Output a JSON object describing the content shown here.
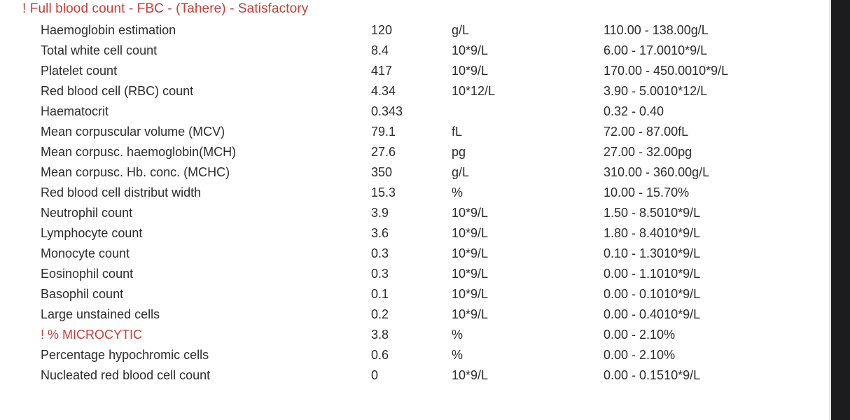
{
  "colors": {
    "alert_red": "#c4403a",
    "body_text": "#2d2d2d",
    "right_bar": "#1c1c1f",
    "right_bar_edge": "#e6e6e8"
  },
  "report": {
    "header": "! Full blood count - FBC - (Tahere) - Satisfactory",
    "rows": [
      {
        "name": "Haemoglobin estimation",
        "value": "120",
        "unit": "g/L",
        "range": "110.00 - 138.00g/L",
        "alert": false
      },
      {
        "name": "Total white cell count",
        "value": "8.4",
        "unit": "10*9/L",
        "range": "6.00 - 17.0010*9/L",
        "alert": false
      },
      {
        "name": "Platelet count",
        "value": "417",
        "unit": "10*9/L",
        "range": "170.00 - 450.0010*9/L",
        "alert": false
      },
      {
        "name": "Red blood cell (RBC) count",
        "value": "4.34",
        "unit": "10*12/L",
        "range": "3.90 - 5.0010*12/L",
        "alert": false
      },
      {
        "name": "Haematocrit",
        "value": "0.343",
        "unit": "",
        "range": "0.32 - 0.40",
        "alert": false
      },
      {
        "name": "Mean corpuscular volume (MCV)",
        "value": "79.1",
        "unit": "fL",
        "range": "72.00 - 87.00fL",
        "alert": false
      },
      {
        "name": "Mean corpusc. haemoglobin(MCH)",
        "value": "27.6",
        "unit": "pg",
        "range": "27.00 - 32.00pg",
        "alert": false
      },
      {
        "name": "Mean corpusc. Hb. conc. (MCHC)",
        "value": "350",
        "unit": "g/L",
        "range": "310.00 - 360.00g/L",
        "alert": false
      },
      {
        "name": "Red blood cell distribut width",
        "value": "15.3",
        "unit": "%",
        "range": "10.00 - 15.70%",
        "alert": false
      },
      {
        "name": "Neutrophil count",
        "value": "3.9",
        "unit": "10*9/L",
        "range": "1.50 - 8.5010*9/L",
        "alert": false
      },
      {
        "name": "Lymphocyte count",
        "value": "3.6",
        "unit": "10*9/L",
        "range": "1.80 - 8.4010*9/L",
        "alert": false
      },
      {
        "name": "Monocyte count",
        "value": "0.3",
        "unit": "10*9/L",
        "range": "0.10 - 1.3010*9/L",
        "alert": false
      },
      {
        "name": "Eosinophil count",
        "value": "0.3",
        "unit": "10*9/L",
        "range": "0.00 - 1.1010*9/L",
        "alert": false
      },
      {
        "name": "Basophil count",
        "value": "0.1",
        "unit": "10*9/L",
        "range": "0.00 - 0.1010*9/L",
        "alert": false
      },
      {
        "name": "Large unstained cells",
        "value": "0.2",
        "unit": "10*9/L",
        "range": "0.00 - 0.4010*9/L",
        "alert": false
      },
      {
        "name": "! % MICROCYTIC",
        "value": "3.8",
        "unit": "%",
        "range": "0.00 - 2.10%",
        "alert": true
      },
      {
        "name": "Percentage hypochromic cells",
        "value": "0.6",
        "unit": "%",
        "range": "0.00 - 2.10%",
        "alert": false
      },
      {
        "name": "Nucleated red blood cell count",
        "value": "0",
        "unit": "10*9/L",
        "range": "0.00 - 0.1510*9/L",
        "alert": false
      }
    ]
  }
}
